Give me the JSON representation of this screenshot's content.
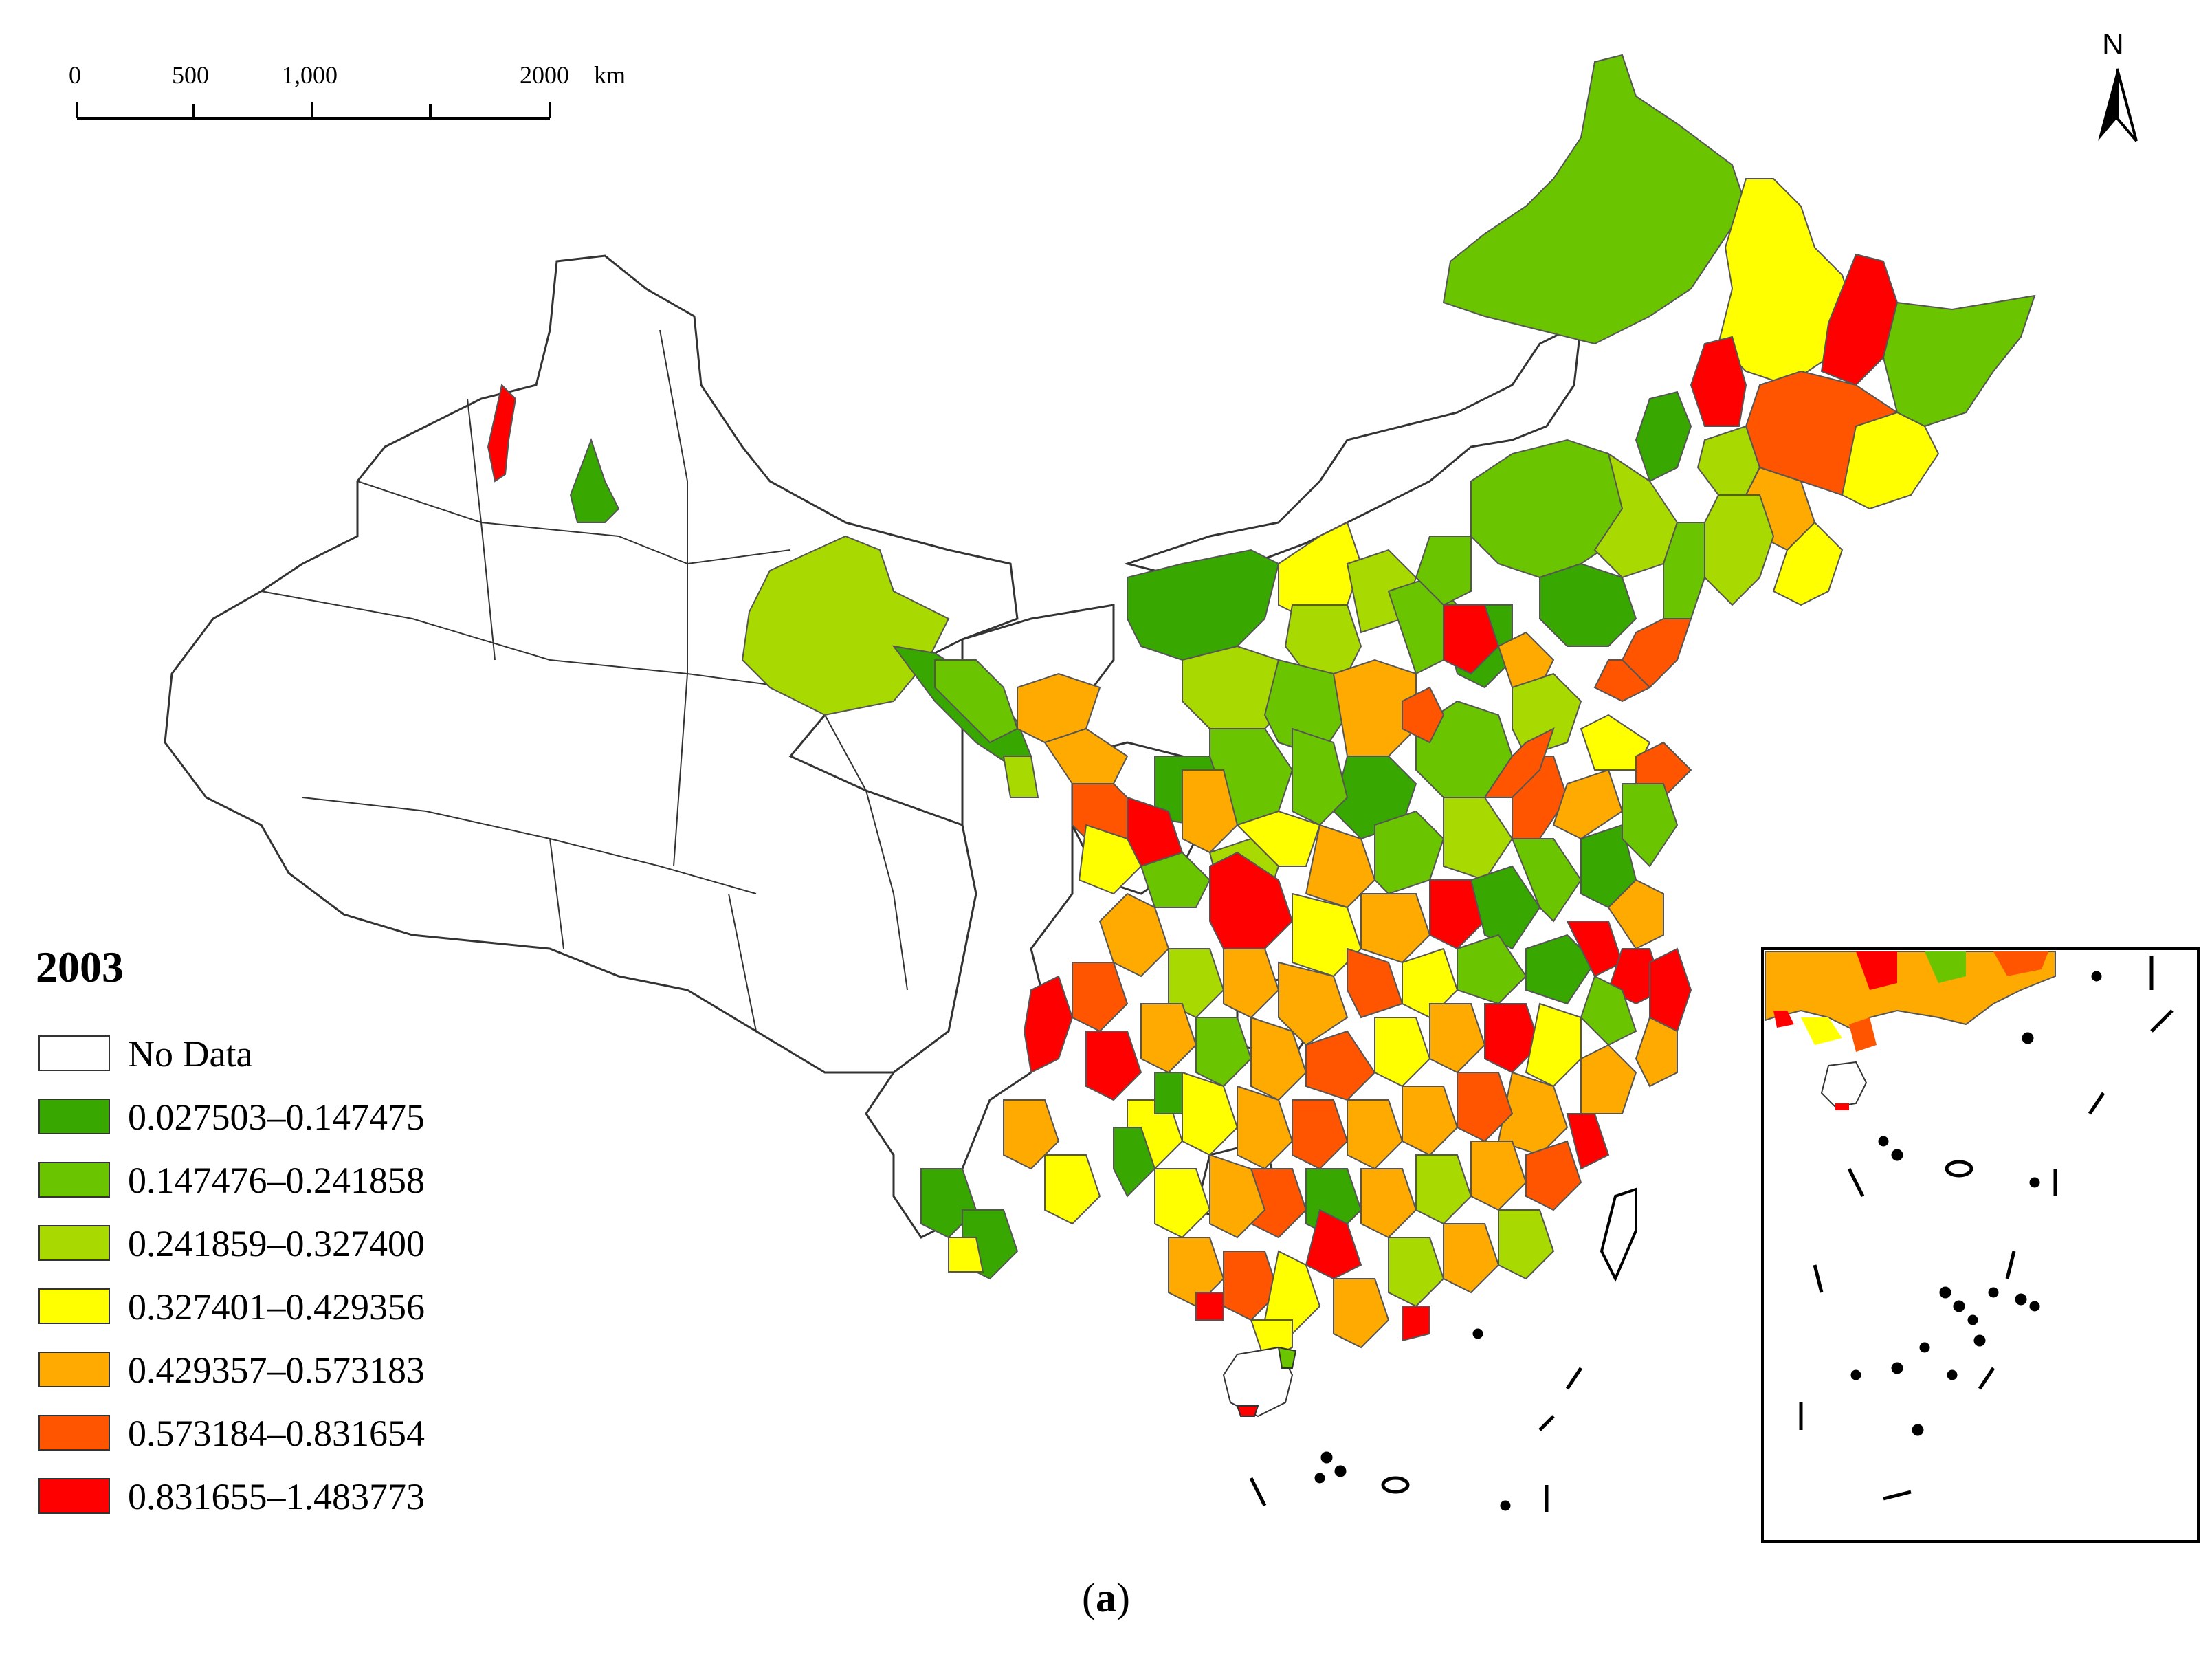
{
  "scale_bar": {
    "labels": [
      "0",
      "500",
      "1,000",
      "2000",
      "km"
    ]
  },
  "north_arrow": {
    "label": "N",
    "icon": "north-arrow-icon"
  },
  "legend": {
    "year": "2003",
    "classes": [
      {
        "label": "No Data",
        "color": "#ffffff"
      },
      {
        "label": "0.027503–0.147475",
        "color": "#38a800"
      },
      {
        "label": "0.147476–0.241858",
        "color": "#6bc400"
      },
      {
        "label": "0.241859–0.327400",
        "color": "#a8d900"
      },
      {
        "label": "0.327401–0.429356",
        "color": "#ffff00"
      },
      {
        "label": "0.429357–0.573183",
        "color": "#ffaa00"
      },
      {
        "label": "0.573184–0.831654",
        "color": "#ff5500"
      },
      {
        "label": "0.831655–1.483773",
        "color": "#ff0000"
      }
    ]
  },
  "caption": {
    "open": "(",
    "letter": "a",
    "close": ")"
  }
}
